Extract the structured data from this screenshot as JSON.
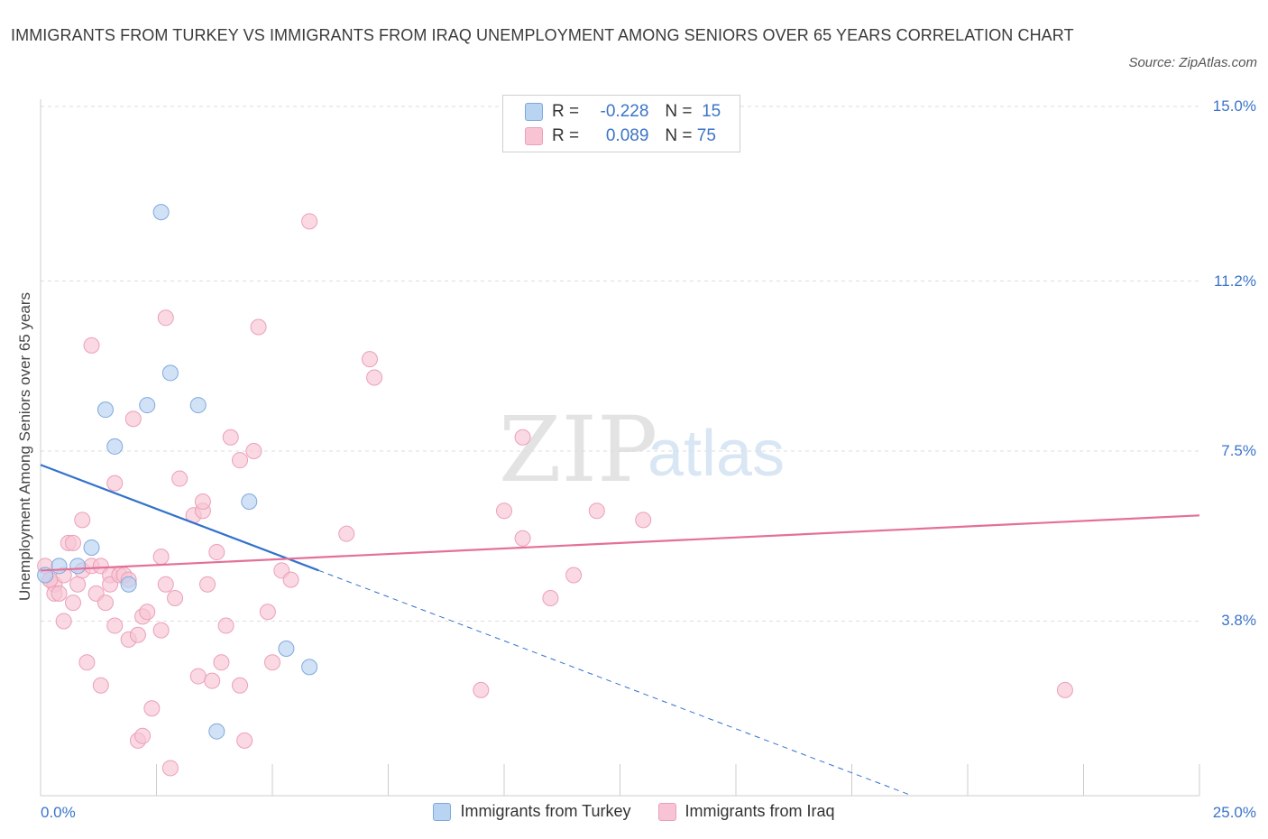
{
  "header": {
    "title": "IMMIGRANTS FROM TURKEY VS IMMIGRANTS FROM IRAQ UNEMPLOYMENT AMONG SENIORS OVER 65 YEARS CORRELATION CHART",
    "source": "Source: ZipAtlas.com"
  },
  "watermark": {
    "zip": "ZIP",
    "atlas": "atlas"
  },
  "legend": {
    "turkey": {
      "r_label": "R =",
      "r_value": "-0.228",
      "n_label": "N =",
      "n_value": "15"
    },
    "iraq": {
      "r_label": "R =",
      "r_value": "0.089",
      "n_label": "N =",
      "n_value": "75"
    }
  },
  "colors": {
    "turkey_fill": "#b9d3f3",
    "turkey_stroke": "#7fa8dc",
    "turkey_line": "#3272cc",
    "iraq_fill": "#f8c4d4",
    "iraq_stroke": "#eba0b8",
    "iraq_line": "#e4709a",
    "tick_color": "#3b74c9",
    "grid": "#dddddd"
  },
  "chart_data": {
    "type": "scatter",
    "title": "IMMIGRANTS FROM TURKEY VS IMMIGRANTS FROM IRAQ UNEMPLOYMENT AMONG SENIORS OVER 65 YEARS CORRELATION CHART",
    "xlabel": "",
    "ylabel": "Unemployment Among Seniors over 65 years",
    "xlim": [
      0,
      25
    ],
    "ylim": [
      0,
      15
    ],
    "x_tick_labels": [
      "0.0%",
      "25.0%"
    ],
    "y_ticks": [
      {
        "value": 3.8,
        "label": "3.8%"
      },
      {
        "value": 7.5,
        "label": "7.5%"
      },
      {
        "value": 11.2,
        "label": "11.2%"
      },
      {
        "value": 15.0,
        "label": "15.0%"
      }
    ],
    "series": [
      {
        "name": "Immigrants from Turkey",
        "r": -0.228,
        "n": 15,
        "points": [
          [
            0.1,
            4.8
          ],
          [
            0.4,
            5.0
          ],
          [
            0.8,
            5.0
          ],
          [
            1.1,
            5.4
          ],
          [
            1.4,
            8.4
          ],
          [
            1.6,
            7.6
          ],
          [
            1.9,
            4.6
          ],
          [
            2.3,
            8.5
          ],
          [
            2.6,
            12.7
          ],
          [
            2.8,
            9.2
          ],
          [
            3.4,
            8.5
          ],
          [
            3.8,
            1.4
          ],
          [
            4.5,
            6.4
          ],
          [
            5.3,
            3.2
          ],
          [
            5.8,
            2.8
          ]
        ],
        "trend": {
          "x0": 0,
          "y0": 7.2,
          "x_solid_end": 6.0,
          "x1": 18.8,
          "y1": 0
        }
      },
      {
        "name": "Immigrants from Iraq",
        "r": 0.089,
        "n": 75,
        "points": [
          [
            0.1,
            5.0
          ],
          [
            0.2,
            4.7
          ],
          [
            0.3,
            4.6
          ],
          [
            0.3,
            4.4
          ],
          [
            0.4,
            4.4
          ],
          [
            0.5,
            3.8
          ],
          [
            0.5,
            4.8
          ],
          [
            0.6,
            5.5
          ],
          [
            0.7,
            5.5
          ],
          [
            0.7,
            4.2
          ],
          [
            0.8,
            4.6
          ],
          [
            0.9,
            4.9
          ],
          [
            0.9,
            6.0
          ],
          [
            1.0,
            2.9
          ],
          [
            1.1,
            5.0
          ],
          [
            1.1,
            9.8
          ],
          [
            1.2,
            4.4
          ],
          [
            1.3,
            2.4
          ],
          [
            1.3,
            5.0
          ],
          [
            1.4,
            4.2
          ],
          [
            1.5,
            4.8
          ],
          [
            1.5,
            4.6
          ],
          [
            1.6,
            3.7
          ],
          [
            1.6,
            6.8
          ],
          [
            1.7,
            4.8
          ],
          [
            1.8,
            4.8
          ],
          [
            1.9,
            4.7
          ],
          [
            1.9,
            3.4
          ],
          [
            2.0,
            8.2
          ],
          [
            2.1,
            3.5
          ],
          [
            2.1,
            1.2
          ],
          [
            2.2,
            1.3
          ],
          [
            2.2,
            3.9
          ],
          [
            2.3,
            4.0
          ],
          [
            2.4,
            1.9
          ],
          [
            2.6,
            5.2
          ],
          [
            2.6,
            3.6
          ],
          [
            2.7,
            4.6
          ],
          [
            2.7,
            10.4
          ],
          [
            2.8,
            0.6
          ],
          [
            2.9,
            4.3
          ],
          [
            3.0,
            6.9
          ],
          [
            3.3,
            6.1
          ],
          [
            3.4,
            2.6
          ],
          [
            3.5,
            6.2
          ],
          [
            3.5,
            6.4
          ],
          [
            3.6,
            4.6
          ],
          [
            3.7,
            2.5
          ],
          [
            3.8,
            5.3
          ],
          [
            3.9,
            2.9
          ],
          [
            4.0,
            3.7
          ],
          [
            4.1,
            7.8
          ],
          [
            4.3,
            2.4
          ],
          [
            4.3,
            7.3
          ],
          [
            4.4,
            1.2
          ],
          [
            4.6,
            7.5
          ],
          [
            4.7,
            10.2
          ],
          [
            4.9,
            4.0
          ],
          [
            5.0,
            2.9
          ],
          [
            5.2,
            4.9
          ],
          [
            5.4,
            4.7
          ],
          [
            5.8,
            12.5
          ],
          [
            6.6,
            5.7
          ],
          [
            7.1,
            9.5
          ],
          [
            7.2,
            9.1
          ],
          [
            9.5,
            2.3
          ],
          [
            10.0,
            6.2
          ],
          [
            10.4,
            5.6
          ],
          [
            10.4,
            7.8
          ],
          [
            11.0,
            4.3
          ],
          [
            11.5,
            4.8
          ],
          [
            12.0,
            6.2
          ],
          [
            13.0,
            6.0
          ],
          [
            22.1,
            2.3
          ],
          [
            0.2,
            4.7
          ]
        ],
        "trend": {
          "x0": 0,
          "y0": 4.9,
          "x1": 25,
          "y1": 6.1
        }
      }
    ],
    "legend_position": "top-center"
  },
  "bottom_legend": {
    "turkey_label": "Immigrants from Turkey",
    "iraq_label": "Immigrants from Iraq"
  }
}
